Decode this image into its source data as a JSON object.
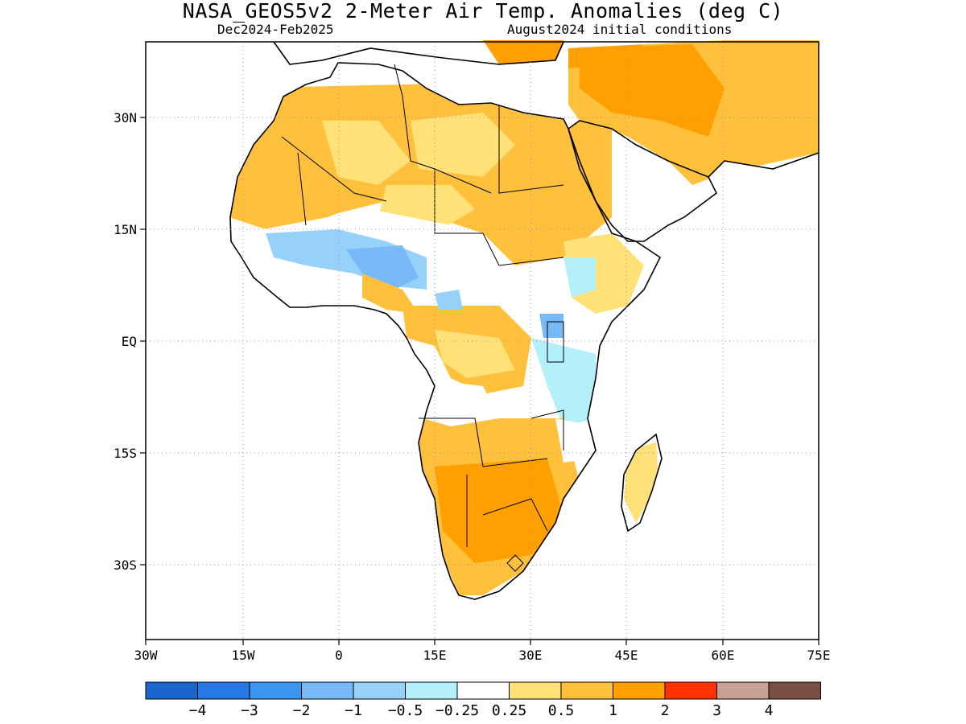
{
  "title": "NASA_GEOS5v2 2-Meter Air Temp. Anomalies (deg C)",
  "subtitle_left": "Dec2024-Feb2025",
  "subtitle_right": "August2024 initial conditions",
  "axes": {
    "lat_labels": [
      "30N",
      "15N",
      "EQ",
      "15S",
      "30S"
    ],
    "lon_labels": [
      "30W",
      "15W",
      "0",
      "15E",
      "30E",
      "45E",
      "60E",
      "75E"
    ]
  },
  "colorbar": {
    "colors": [
      "#1a66cc",
      "#2878e6",
      "#3c96f0",
      "#78b9f8",
      "#96d1fa",
      "#b4f0fa",
      "#ffffff",
      "#ffe178",
      "#ffc03c",
      "#ffa000",
      "#ff3200",
      "#c8a096",
      "#7a4f44"
    ],
    "labels": [
      "-4",
      "-3",
      "-2",
      "-1",
      "-0.5",
      "-0.25",
      "0.25",
      "0.5",
      "1",
      "2",
      "3",
      "4"
    ]
  },
  "colors": {
    "warm_light": "#ffe178",
    "warm_mid": "#ffc03c",
    "warm_strong": "#ffa000",
    "cool_light": "#b4f0fa",
    "cool_mid": "#96d1fa",
    "cool_strong": "#78b9f8",
    "cool_deep": "#3c96f0"
  }
}
